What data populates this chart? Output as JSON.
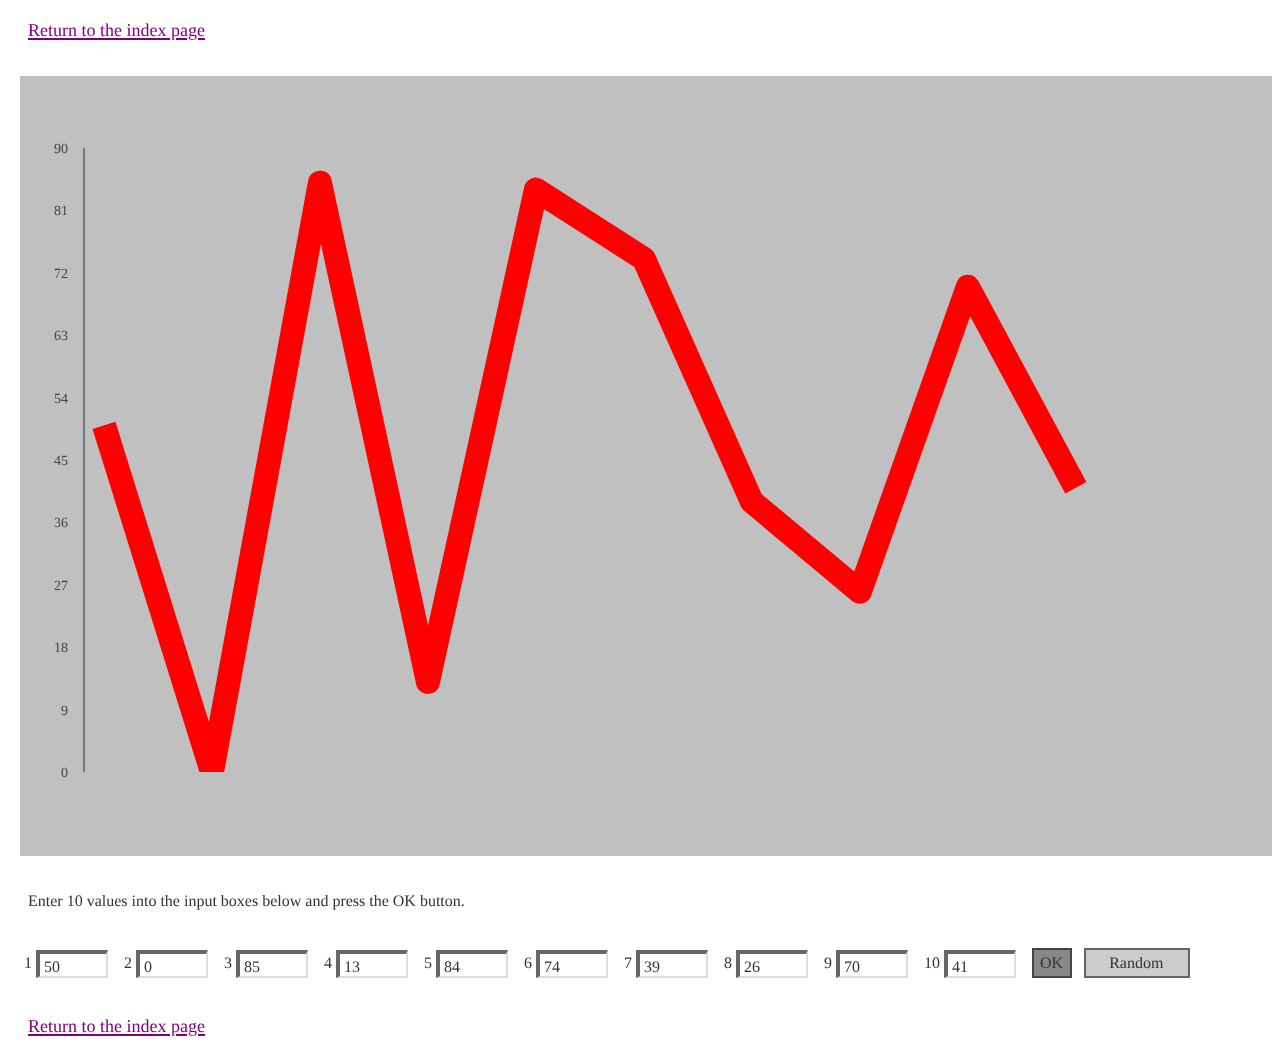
{
  "chart_data": {
    "type": "line",
    "categories": [
      null,
      null,
      null,
      null,
      null,
      null,
      null,
      null,
      null,
      null
    ],
    "series": [
      {
        "color": "#ff0000",
        "values": [
          50,
          0,
          85,
          13,
          84,
          74,
          39,
          26,
          70,
          41
        ]
      }
    ],
    "ylim": [
      0,
      90
    ],
    "yticks": [
      0,
      9,
      18,
      27,
      36,
      45,
      54,
      63,
      72,
      81,
      90
    ],
    "grid": false,
    "legend": false,
    "marker": "none",
    "line_style": "solid",
    "tick_labels": "y",
    "annotations": [
      "Return to the index page",
      "Enter 10 values into the input boxes below and press the OK button.",
      "1",
      "2",
      "3",
      "4",
      "5",
      "6",
      "7",
      "8",
      "9",
      "10",
      "50",
      "0",
      "85",
      "13",
      "84",
      "74",
      "39",
      "26",
      "70",
      "41",
      "OK",
      "Random",
      "Return to the index page"
    ]
  }
}
